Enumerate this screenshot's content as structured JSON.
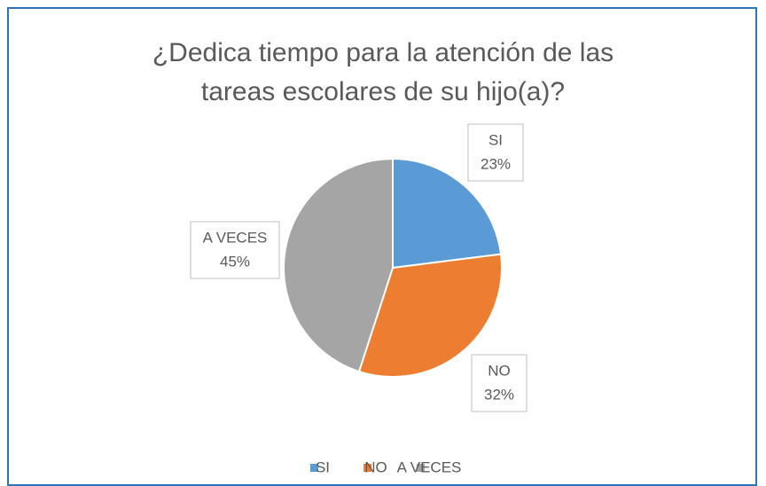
{
  "chart_data": {
    "type": "pie",
    "title": "¿Dedica tiempo para la atención de las tareas escolares de su hijo(a)?",
    "categories": [
      "SI",
      "NO",
      "A VECES"
    ],
    "values": [
      23,
      32,
      45
    ],
    "value_labels": [
      "23%",
      "32%",
      "45%"
    ],
    "colors": [
      "#5b9bd5",
      "#ed7d31",
      "#a5a5a5"
    ],
    "legend": "bottom"
  }
}
